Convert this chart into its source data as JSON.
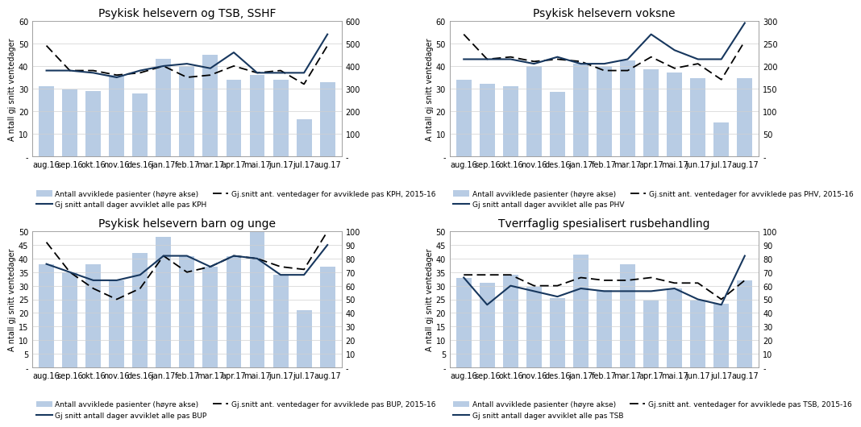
{
  "months": [
    "aug.16",
    "sep.16",
    "okt.16",
    "nov.16",
    "des.16",
    "jan.17",
    "feb.17",
    "mar.17",
    "apr.17",
    "mai.17",
    "jun.17",
    "jul.17",
    "aug.17"
  ],
  "p1": {
    "title": "Psykisk helsevern og TSB, SSHF",
    "bars": [
      310,
      298,
      290,
      360,
      278,
      430,
      400,
      448,
      340,
      360,
      340,
      166,
      330
    ],
    "line_solid": [
      38,
      38,
      37,
      35,
      38,
      40,
      41,
      39,
      46,
      37,
      37,
      37,
      54
    ],
    "line_dashed": [
      49,
      38,
      38,
      36,
      37,
      40,
      35,
      36,
      40,
      37,
      38,
      32,
      49
    ],
    "ylim_left": [
      0,
      60
    ],
    "ylim_right": [
      0,
      600
    ],
    "yticks_left": [
      0,
      10,
      20,
      30,
      40,
      50,
      60
    ],
    "yticks_right": [
      0,
      100,
      200,
      300,
      400,
      500,
      600
    ],
    "legend_line": "Gj snitt antall dager avviklet alle pas KPH",
    "legend_dashed": "Gj.snitt ant. ventedager for avviklede pas KPH, 2015-16"
  },
  "p2": {
    "title": "Psykisk helsevern voksne",
    "bars": [
      170,
      160,
      155,
      200,
      143,
      205,
      200,
      212,
      192,
      185,
      173,
      76,
      173
    ],
    "line_solid": [
      43,
      43,
      43,
      41,
      44,
      41,
      41,
      43,
      54,
      47,
      43,
      43,
      59
    ],
    "line_dashed": [
      54,
      43,
      44,
      42,
      43,
      42,
      38,
      38,
      44,
      39,
      41,
      34,
      51
    ],
    "ylim_left": [
      0,
      60
    ],
    "ylim_right": [
      0,
      300
    ],
    "yticks_left": [
      0,
      10,
      20,
      30,
      40,
      50,
      60
    ],
    "yticks_right": [
      0,
      50,
      100,
      150,
      200,
      250,
      300
    ],
    "legend_line": "Gj snitt antall dager avviklet alle pas PHV",
    "legend_dashed": "Gj.snitt ant. ventedager for avviklede pas PHV, 2015-16"
  },
  "p3": {
    "title": "Psykisk helsevern barn og unge",
    "bars": [
      76,
      70,
      76,
      64,
      84,
      96,
      82,
      74,
      82,
      100,
      68,
      42,
      74
    ],
    "line_solid": [
      38,
      35,
      32,
      32,
      34,
      41,
      41,
      37,
      41,
      40,
      34,
      34,
      45
    ],
    "line_dashed": [
      46,
      35,
      29,
      25,
      29,
      41,
      35,
      37,
      41,
      40,
      37,
      36,
      50
    ],
    "ylim_left": [
      0,
      50
    ],
    "ylim_right": [
      0,
      100
    ],
    "yticks_left": [
      0,
      5,
      10,
      15,
      20,
      25,
      30,
      35,
      40,
      45,
      50
    ],
    "yticks_right": [
      0,
      10,
      20,
      30,
      40,
      50,
      60,
      70,
      80,
      90,
      100
    ],
    "legend_line": "Gj snitt antall dager avviklet alle pas BUP",
    "legend_dashed": "Gj.snitt ant. ventedager for avviklede pas BUP, 2015-16"
  },
  "p4": {
    "title": "Tverrfaglig spesialisert rusbehandling",
    "bars": [
      66,
      62,
      68,
      59,
      51,
      83,
      57,
      76,
      49,
      58,
      49,
      47,
      64
    ],
    "line_solid": [
      33,
      23,
      30,
      28,
      26,
      29,
      28,
      28,
      28,
      29,
      25,
      23,
      41
    ],
    "line_dashed": [
      34,
      34,
      34,
      30,
      30,
      33,
      32,
      32,
      33,
      31,
      31,
      25,
      32
    ],
    "ylim_left": [
      0,
      50
    ],
    "ylim_right": [
      0,
      100
    ],
    "yticks_left": [
      0,
      5,
      10,
      15,
      20,
      25,
      30,
      35,
      40,
      45,
      50
    ],
    "yticks_right": [
      0,
      10,
      20,
      30,
      40,
      50,
      60,
      70,
      80,
      90,
      100
    ],
    "legend_line": "Gj snitt antall dager avviklet alle pas TSB",
    "legend_dashed": "Gj.snitt ant. ventedager for avviklede pas TSB, 2015-16"
  },
  "bar_color": "#b8cce4",
  "line_color": "#17375e",
  "dashed_color": "#000000",
  "ylabel": "A ntall gj snitt ventedager",
  "legend_bar": "Antall avviklede pasienter (høyre akse)",
  "bg_color": "#ffffff",
  "title_fontsize": 10,
  "tick_fontsize": 7,
  "legend_fontsize": 6.5,
  "label_fontsize": 7
}
